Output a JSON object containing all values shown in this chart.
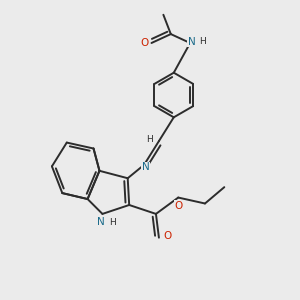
{
  "background_color": "#ebebeb",
  "bond_color": "#2c2c2c",
  "nitrogen_color": "#1a6b8a",
  "oxygen_color": "#cc2200",
  "line_width": 1.4,
  "figsize": [
    3.0,
    3.0
  ],
  "dpi": 100,
  "xlim": [
    0,
    10
  ],
  "ylim": [
    0,
    10
  ]
}
